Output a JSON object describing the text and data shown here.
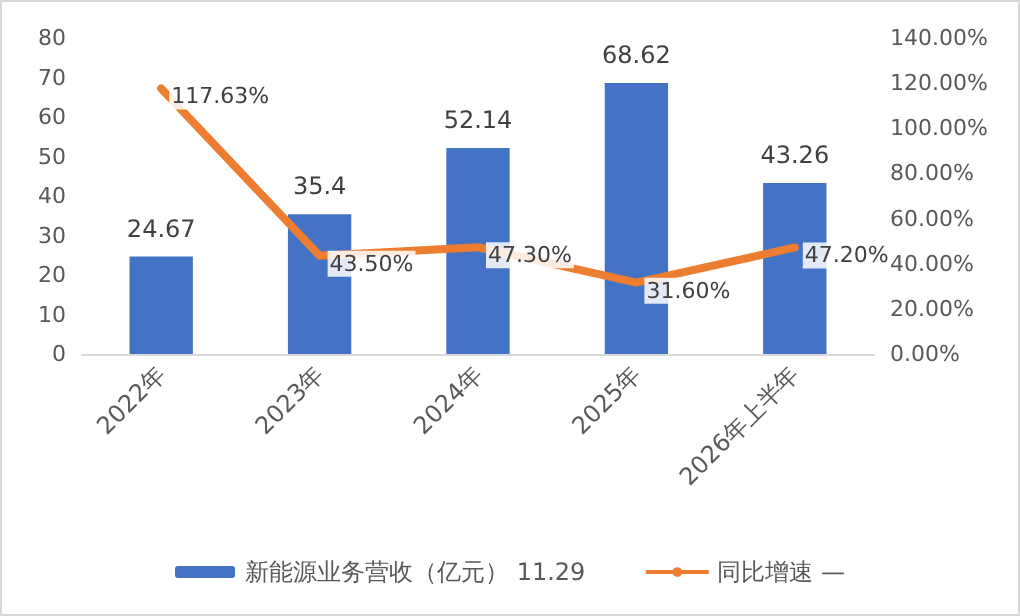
{
  "chart_data": {
    "type": "bar",
    "categories": [
      "2022年",
      "2023年",
      "2024年",
      "2025年",
      "2026年上半年"
    ],
    "series": [
      {
        "name": "新能源业务营收（亿元） 11.29",
        "color": "#4472c4",
        "values": [
          24.67,
          35.4,
          52.14,
          68.62,
          43.26
        ],
        "value_labels": [
          "24.67",
          "35.4",
          "52.14",
          "68.62",
          "43.26"
        ]
      },
      {
        "name": "同比增速 —",
        "type": "line",
        "axis": "y2",
        "color": "#ed7d31",
        "values": [
          117.63,
          43.5,
          47.3,
          31.6,
          47.2
        ],
        "value_labels": [
          "117.63%",
          "43.50%",
          "47.30%",
          "31.60%",
          "47.20%"
        ],
        "marker": "none"
      }
    ],
    "ylim": [
      0,
      80
    ],
    "yticks": [
      0,
      10,
      20,
      30,
      40,
      50,
      60,
      70,
      80
    ],
    "y2lim": [
      0,
      140
    ],
    "y2ticks": [
      {
        "value": 0,
        "label": "0.00%"
      },
      {
        "value": 20,
        "label": "20.00%"
      },
      {
        "value": 40,
        "label": "40.00%"
      },
      {
        "value": 60,
        "label": "60.00%"
      },
      {
        "value": 80,
        "label": "80.00%"
      },
      {
        "value": 100,
        "label": "100.00%"
      },
      {
        "value": 120,
        "label": "120.00%"
      },
      {
        "value": 140,
        "label": "140.00%"
      }
    ],
    "grid": false,
    "legend": "bottom"
  }
}
